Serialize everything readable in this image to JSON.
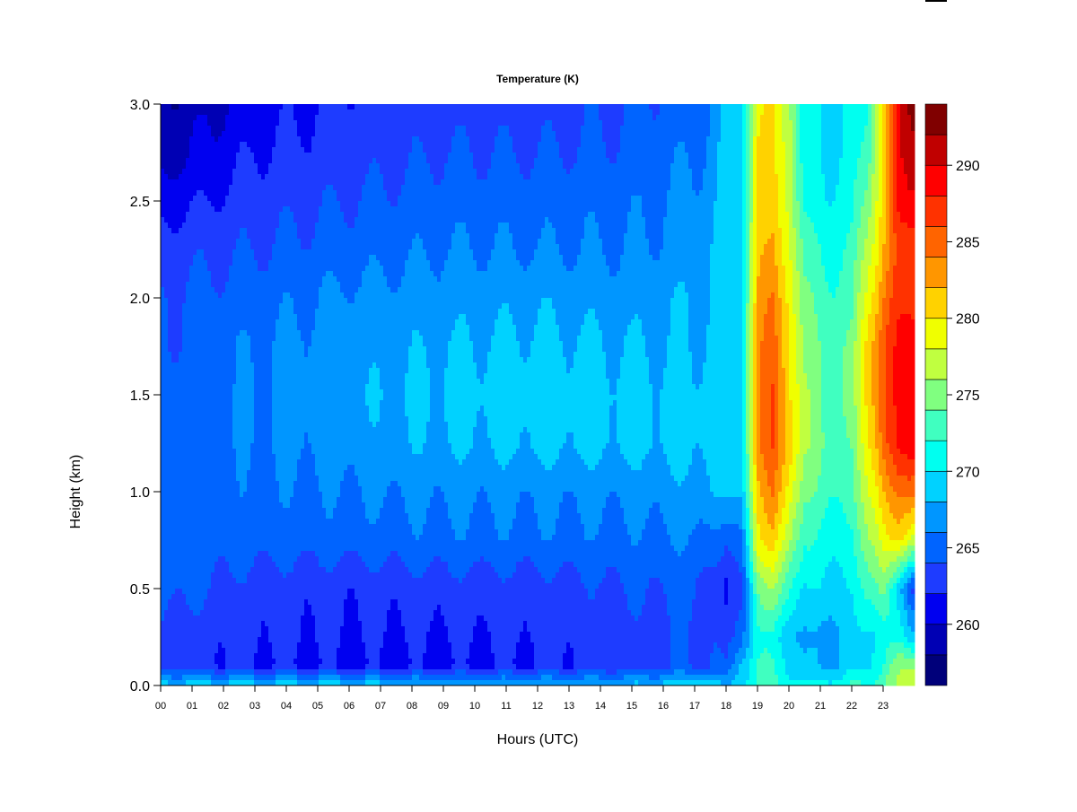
{
  "chart_data": {
    "type": "heatmap",
    "style": "filled-contour",
    "title": "Temperature (K)",
    "xlabel": "Hours (UTC)",
    "ylabel": "Height (km)",
    "xlim": [
      0,
      24
    ],
    "ylim": [
      0,
      3
    ],
    "x_ticks": [
      "00",
      "01",
      "02",
      "03",
      "04",
      "05",
      "06",
      "07",
      "08",
      "09",
      "10",
      "11",
      "12",
      "13",
      "14",
      "15",
      "16",
      "17",
      "18",
      "19",
      "20",
      "21",
      "22",
      "23"
    ],
    "y_ticks": [
      "0.0",
      "0.5",
      "1.0",
      "1.5",
      "2.0",
      "2.5",
      "3.0"
    ],
    "colorbar": {
      "levels": [
        256,
        258,
        260,
        262,
        264,
        266,
        268,
        270,
        272,
        274,
        276,
        278,
        280,
        282,
        284,
        286,
        288,
        290,
        292,
        294
      ],
      "tick_labels": [
        "260",
        "265",
        "270",
        "275",
        "280",
        "285",
        "290"
      ],
      "colors": [
        "#00007a",
        "#0000b4",
        "#0000f0",
        "#1e3cff",
        "#0064ff",
        "#0096ff",
        "#00d2ff",
        "#00fff0",
        "#40ffc0",
        "#80ff80",
        "#c0ff40",
        "#f0ff00",
        "#ffd200",
        "#ff9600",
        "#ff6400",
        "#ff3200",
        "#ff0000",
        "#c00000",
        "#800000"
      ]
    },
    "x": [
      0,
      3,
      6,
      9,
      12,
      15,
      17,
      17.5,
      18,
      18.5,
      19,
      19.5,
      20,
      20.5,
      21,
      21.5,
      22,
      22.5,
      23,
      23.5,
      23.9
    ],
    "y": [
      0,
      0.1,
      0.25,
      0.5,
      0.75,
      1.0,
      1.25,
      1.5,
      1.75,
      2.0,
      2.25,
      2.5,
      2.75,
      3.0
    ],
    "z": [
      [
        269,
        263,
        263,
        265,
        265,
        265,
        265,
        265,
        264,
        264,
        263,
        261,
        259,
        258
      ],
      [
        269,
        262,
        262.5,
        263,
        265,
        265.5,
        266,
        266,
        266,
        265,
        264,
        263,
        262,
        261
      ],
      [
        269,
        261.5,
        262,
        262.5,
        265,
        266,
        267,
        267.5,
        267,
        266.5,
        265,
        264,
        263,
        262.5
      ],
      [
        268,
        261.5,
        262,
        263,
        265.5,
        266.5,
        268,
        268.5,
        268,
        267,
        266,
        265,
        264,
        263
      ],
      [
        268,
        262,
        262.5,
        263,
        265.5,
        266.5,
        268.5,
        269,
        268.5,
        267.5,
        266,
        265,
        264,
        263
      ],
      [
        268,
        263,
        263,
        264,
        265.5,
        266.5,
        268.5,
        268.5,
        268,
        267,
        266,
        265.5,
        264.5,
        264
      ],
      [
        270,
        264,
        264,
        264.5,
        266,
        267.5,
        268.5,
        268.5,
        268,
        268,
        267,
        266.5,
        266,
        265
      ],
      [
        270,
        264,
        264,
        263,
        265.5,
        268,
        269,
        269,
        268.5,
        268,
        268,
        267,
        266.5,
        266
      ],
      [
        267,
        264,
        262.5,
        261,
        264,
        268,
        269,
        269.5,
        269.5,
        269,
        269,
        269,
        268.5,
        268
      ],
      [
        270,
        269,
        266,
        264,
        266,
        269,
        270,
        270,
        270,
        270,
        270,
        270,
        270,
        270
      ],
      [
        272,
        272,
        271,
        274,
        279,
        281,
        283,
        283,
        283,
        282,
        281,
        280,
        280,
        279
      ],
      [
        273,
        272,
        271,
        276,
        281,
        284,
        286,
        286,
        285,
        284,
        282,
        281,
        280,
        280
      ],
      [
        271,
        270,
        269,
        273,
        277,
        280,
        282,
        281,
        281,
        280,
        279,
        278,
        278,
        277
      ],
      [
        270,
        268,
        267,
        269,
        272,
        274,
        276,
        276,
        275,
        274,
        273,
        271,
        270,
        270
      ],
      [
        271,
        268,
        267.5,
        270,
        271.5,
        273.5,
        274.5,
        274,
        274,
        273,
        272,
        270.5,
        270,
        270
      ],
      [
        271,
        268,
        268,
        269.5,
        271,
        272.5,
        273.5,
        274,
        273.5,
        272.5,
        271.5,
        270.5,
        270,
        270
      ],
      [
        272,
        269,
        268.5,
        269.5,
        271,
        272.5,
        273.5,
        274,
        274,
        273,
        272,
        271,
        270,
        270
      ],
      [
        272,
        270,
        270,
        273,
        276,
        278,
        280,
        281,
        281,
        279,
        277,
        275,
        273,
        272
      ],
      [
        274,
        272,
        271,
        275,
        279,
        282,
        285,
        286,
        286,
        284,
        282,
        281,
        281,
        281
      ],
      [
        276,
        275,
        271,
        268,
        280,
        284,
        288,
        288,
        288,
        287,
        286,
        288,
        289,
        289
      ],
      [
        278,
        276,
        269,
        264,
        278,
        285,
        290,
        289,
        289,
        288,
        287,
        290,
        292,
        293
      ]
    ]
  }
}
